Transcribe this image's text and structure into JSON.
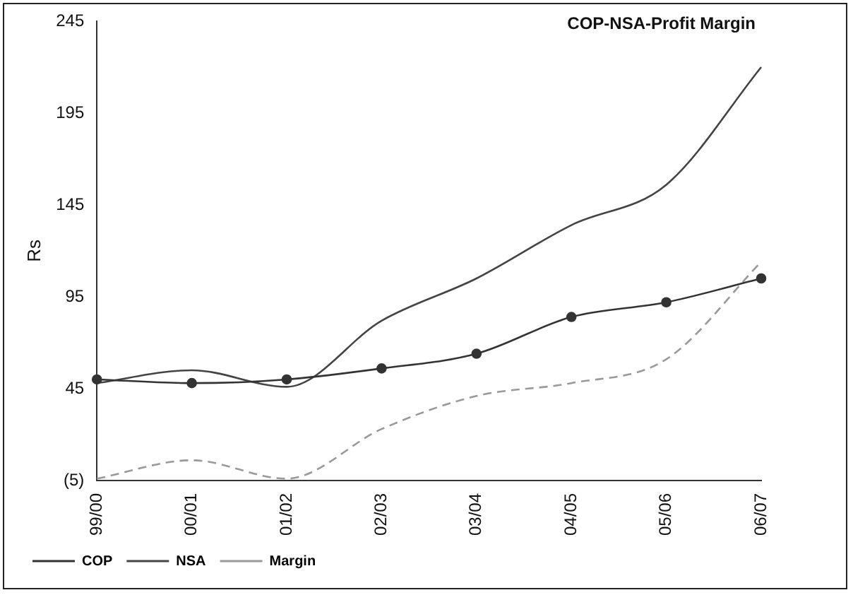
{
  "chart_data": {
    "type": "line",
    "title": "COP-NSA-Profit Margin",
    "ylabel": "Rs",
    "categories": [
      "99/00",
      "00/01",
      "01/02",
      "02/03",
      "03/04",
      "04/05",
      "05/06",
      "06/07"
    ],
    "series": [
      {
        "name": "COP",
        "color": "#333333",
        "marker": "circle",
        "line_style": "solid",
        "values": [
          50,
          48,
          50,
          56,
          64,
          84,
          92,
          105
        ]
      },
      {
        "name": "NSA",
        "color": "#444444",
        "marker": "none",
        "line_style": "solid",
        "values": [
          48,
          55,
          46,
          82,
          105,
          134,
          156,
          220
        ]
      },
      {
        "name": "Margin",
        "color": "#999999",
        "marker": "none",
        "line_style": "dashed",
        "values": [
          -4,
          6,
          -4,
          23,
          41,
          48,
          61,
          114
        ]
      }
    ],
    "ylim": [
      -5,
      245
    ],
    "yticks": [
      {
        "value": -5,
        "label": "(5)"
      },
      45,
      95,
      145,
      195,
      245
    ],
    "grid": false,
    "legend": "bottom"
  }
}
